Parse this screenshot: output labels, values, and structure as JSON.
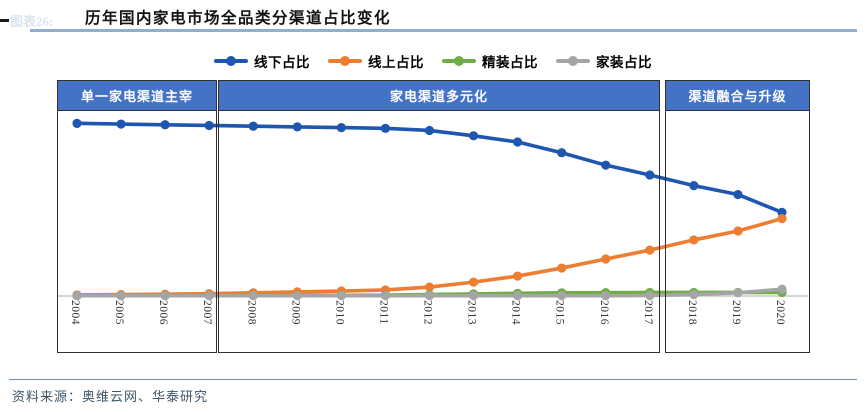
{
  "figure_label": "图表26:",
  "source": "资料来源：奥维云网、华泰研究",
  "colors": {
    "band_fill": "#4472C4",
    "band_text": "#FFFFFF",
    "box_border": "#2F2F2F",
    "axis_line": "#C8C8C8",
    "title_rule": "#8FAED1",
    "footer_rule": "#6B8CAE",
    "offline_blue": "#1E56B0",
    "online_orange": "#ED7D31",
    "jingzhuang_green": "#70AD47",
    "jiazhuang_gray": "#A5A5A5"
  },
  "bands": [
    {
      "label": "单一家电渠道主宰",
      "from_year": 2004,
      "to_year": 2007
    },
    {
      "label": "家电渠道多元化",
      "from_year": 2008,
      "to_year": 2017
    },
    {
      "label": "渠道融合与升级",
      "from_year": 2018,
      "to_year": 2020
    }
  ],
  "chart_data": {
    "type": "line",
    "title": "历年国内家电市场全品类分渠道占比变化",
    "x": [
      2004,
      2005,
      2006,
      2007,
      2008,
      2009,
      2010,
      2011,
      2012,
      2013,
      2014,
      2015,
      2016,
      2017,
      2018,
      2019,
      2020
    ],
    "series": [
      {
        "name": "线下占比",
        "color": "#1E56B0",
        "values": [
          97,
          96.6,
          96.2,
          95.8,
          95.4,
          95,
          94.6,
          94.2,
          93,
          90,
          86.5,
          80.5,
          73.5,
          68,
          62,
          57,
          47
        ]
      },
      {
        "name": "线上占比",
        "color": "#ED7D31",
        "values": [
          0.6,
          0.8,
          1,
          1.3,
          1.8,
          2.3,
          2.8,
          3.4,
          5,
          7.8,
          11.2,
          15.7,
          20.8,
          25.8,
          31.5,
          36.5,
          43.5
        ]
      },
      {
        "name": "精装占比",
        "color": "#70AD47",
        "values": [
          0.2,
          0.2,
          0.2,
          0.2,
          0.3,
          0.3,
          0.4,
          0.5,
          0.8,
          1.2,
          1.5,
          1.8,
          1.9,
          2,
          2,
          2,
          2
        ]
      },
      {
        "name": "家装占比",
        "color": "#A5A5A5",
        "values": [
          0.2,
          0.2,
          0.2,
          0.2,
          0.2,
          0.2,
          0.2,
          0.2,
          0.2,
          0.2,
          0.2,
          0.2,
          0.2,
          0.3,
          0.8,
          1.8,
          3.8
        ]
      }
    ],
    "ylim": [
      0,
      100
    ],
    "y_axis_visible": false,
    "grid": false,
    "legend_position": "top",
    "x_tick_rotation": 90
  }
}
